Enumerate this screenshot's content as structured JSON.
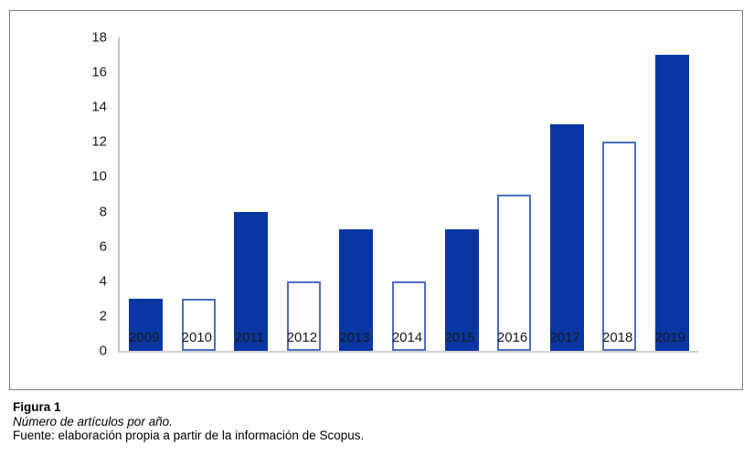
{
  "chart_data": {
    "type": "bar",
    "title": "",
    "categories": [
      "2009",
      "2010",
      "2011",
      "2012",
      "2013",
      "2014",
      "2015",
      "2016",
      "2017",
      "2018",
      "2019"
    ],
    "values": [
      3,
      3,
      8,
      4,
      7,
      4,
      7,
      9,
      13,
      12,
      17
    ],
    "bar_styles": [
      "filled",
      "outline",
      "filled",
      "outline",
      "filled",
      "outline",
      "filled",
      "outline",
      "filled",
      "outline",
      "filled"
    ],
    "xlabel": "",
    "ylabel": "",
    "ylim": [
      0,
      18
    ],
    "yticks": [
      0,
      2,
      4,
      6,
      8,
      10,
      12,
      14,
      16,
      18
    ],
    "grid": false,
    "legend": "none",
    "colors": {
      "bar_fill": "#0a36a4",
      "bar_outline_border": "#4d6fc0",
      "axis_line": "#c6c6c6",
      "tick_text": "#1a1a1a",
      "figure_border": "#7f7f7f"
    }
  },
  "caption": {
    "label": "Figura 1",
    "title": "Número de artículos por año.",
    "source": "Fuente: elaboración propia a partir de la información de Scopus."
  }
}
